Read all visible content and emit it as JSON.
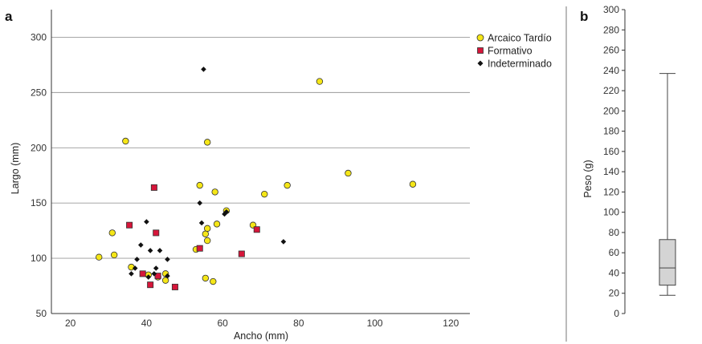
{
  "panels": {
    "a": "a",
    "b": "b"
  },
  "chart_data": [
    {
      "type": "scatter",
      "title": "",
      "xlabel": "Ancho (mm)",
      "ylabel": "Largo (mm)",
      "xlim": [
        15,
        125
      ],
      "ylim": [
        50,
        325
      ],
      "x_ticks": [
        20,
        40,
        60,
        80,
        100,
        120
      ],
      "y_ticks": [
        50,
        100,
        150,
        200,
        250,
        300
      ],
      "grid": "horizontal",
      "legend": "top-right",
      "series": [
        {
          "name": "Arcaico Tardío",
          "marker": "circle",
          "color": "#f5e617",
          "points": [
            [
              27.5,
              101
            ],
            [
              31,
              123
            ],
            [
              31.5,
              103
            ],
            [
              34.5,
              206
            ],
            [
              36,
              92
            ],
            [
              40.5,
              85
            ],
            [
              43,
              83
            ],
            [
              45,
              86
            ],
            [
              45,
              80
            ],
            [
              53,
              108
            ],
            [
              54,
              166
            ],
            [
              55.5,
              122
            ],
            [
              55.5,
              82
            ],
            [
              56,
              127
            ],
            [
              56,
              116
            ],
            [
              56,
              205
            ],
            [
              57.5,
              79
            ],
            [
              58,
              160
            ],
            [
              58.5,
              131
            ],
            [
              61,
              143
            ],
            [
              68,
              130
            ],
            [
              71,
              158
            ],
            [
              77,
              166
            ],
            [
              85.5,
              260
            ],
            [
              93,
              177
            ],
            [
              110,
              167
            ]
          ]
        },
        {
          "name": "Formativo",
          "marker": "square",
          "color": "#d6163a",
          "points": [
            [
              35.5,
              130
            ],
            [
              39,
              86
            ],
            [
              41,
              76
            ],
            [
              42,
              164
            ],
            [
              42.5,
              123
            ],
            [
              43,
              84
            ],
            [
              47.5,
              74
            ],
            [
              54,
              109
            ],
            [
              65,
              104
            ],
            [
              69,
              126
            ]
          ]
        },
        {
          "name": "Indeterminado",
          "marker": "diamond",
          "color": "#111111",
          "points": [
            [
              36,
              86
            ],
            [
              37.5,
              99
            ],
            [
              38.5,
              112
            ],
            [
              40,
              133
            ],
            [
              40.5,
              83
            ],
            [
              41,
              107
            ],
            [
              42,
              86
            ],
            [
              42.5,
              91
            ],
            [
              43.5,
              107
            ],
            [
              45.5,
              99
            ],
            [
              45.5,
              84
            ],
            [
              54,
              150
            ],
            [
              54.5,
              132
            ],
            [
              55,
              271
            ],
            [
              60.5,
              140
            ],
            [
              61,
              142
            ],
            [
              76,
              115
            ],
            [
              37,
              91
            ]
          ]
        }
      ]
    },
    {
      "type": "box",
      "title": "",
      "ylabel": "Peso (g)",
      "ylim": [
        0,
        300
      ],
      "y_ticks": [
        0,
        20,
        40,
        60,
        80,
        100,
        120,
        140,
        160,
        180,
        200,
        220,
        240,
        260,
        280,
        300
      ],
      "box": {
        "min": 18,
        "q1": 28,
        "median": 45,
        "q3": 73,
        "max": 237
      }
    }
  ]
}
